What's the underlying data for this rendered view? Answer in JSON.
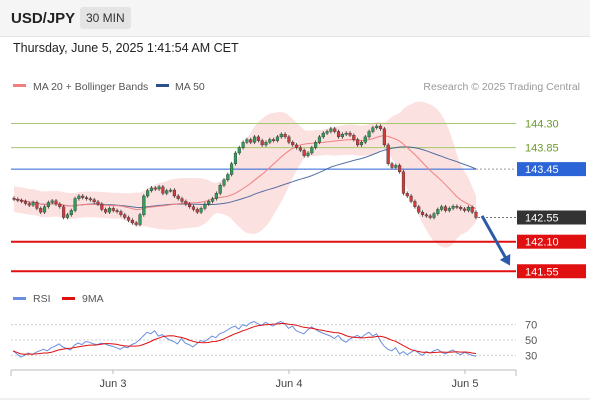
{
  "header": {
    "pair": "USD/JPY",
    "timeframe": "30 MIN"
  },
  "datetime": "Thursday, June 5, 2025 1:41:54 AM CET",
  "colors": {
    "bull": "#2e9e58",
    "bear": "#d33b3b",
    "bands_fill": "#fcdcdc",
    "ma20": "#f08080",
    "ma50": "#2b4f8c",
    "resistance": "#a5c86b",
    "pivot": "#2a64d6",
    "support": "#e01010",
    "last_price_bg": "#333333",
    "arrow": "#2b5ba8",
    "rsi": "#6a8ee0",
    "rsi_ma": "#e01010",
    "grid": "#cfcfcf"
  },
  "chart_data": [
    {
      "type": "candlestick",
      "title": "",
      "legend": [
        "MA 20 + Bollinger Bands",
        "MA 50"
      ],
      "legend_position": "top-left",
      "source": "Research © 2025 Trading Central",
      "x_ticks": [
        "Jun 3",
        "Jun 4",
        "Jun 5"
      ],
      "ylim": [
        141.35,
        144.55
      ],
      "levels": [
        {
          "label": "144.30",
          "value": 144.3,
          "kind": "resistance"
        },
        {
          "label": "143.85",
          "value": 143.85,
          "kind": "resistance"
        },
        {
          "label": "143.45",
          "value": 143.45,
          "kind": "pivot"
        },
        {
          "label": "142.10",
          "value": 142.1,
          "kind": "support"
        },
        {
          "label": "141.55",
          "value": 141.55,
          "kind": "support"
        }
      ],
      "last_price": {
        "label": "142.55",
        "value": 142.55
      },
      "forecast_arrow": {
        "from": 142.58,
        "to": 141.72
      },
      "close": [
        142.89,
        142.87,
        142.85,
        142.81,
        142.78,
        142.83,
        142.72,
        142.65,
        142.75,
        142.83,
        142.86,
        142.8,
        142.75,
        142.55,
        142.6,
        142.68,
        142.9,
        142.95,
        142.92,
        142.9,
        142.88,
        142.84,
        142.8,
        142.7,
        142.65,
        142.72,
        142.68,
        142.66,
        142.6,
        142.55,
        142.5,
        142.45,
        142.42,
        142.6,
        142.95,
        143.05,
        143.1,
        143.08,
        143.12,
        143.0,
        143.05,
        143.06,
        142.95,
        142.9,
        142.85,
        142.8,
        142.75,
        142.7,
        142.65,
        142.72,
        142.8,
        142.85,
        142.9,
        143.0,
        143.15,
        143.25,
        143.35,
        143.55,
        143.75,
        143.85,
        143.95,
        144.0,
        143.95,
        144.05,
        143.98,
        143.9,
        143.95,
        144.0,
        143.98,
        144.05,
        144.1,
        144.05,
        143.95,
        143.9,
        143.85,
        143.8,
        143.7,
        143.75,
        143.85,
        143.95,
        144.05,
        144.12,
        144.15,
        144.2,
        144.15,
        144.05,
        144.1,
        144.12,
        144.08,
        144.0,
        143.9,
        143.95,
        144.05,
        144.15,
        144.22,
        144.25,
        144.2,
        143.9,
        143.55,
        143.48,
        143.52,
        143.4,
        143.0,
        142.95,
        142.85,
        142.75,
        142.65,
        142.6,
        142.58,
        142.55,
        142.62,
        142.7,
        142.75,
        142.68,
        142.72,
        142.76,
        142.74,
        142.71,
        142.68,
        142.74,
        142.65,
        142.55
      ]
    },
    {
      "type": "line",
      "title": "",
      "legend": [
        "RSI",
        "9MA"
      ],
      "legend_position": "top-left",
      "ylim": [
        15,
        85
      ],
      "y_ticks": [
        70,
        50,
        30
      ],
      "rsi": [
        36,
        32,
        28,
        30,
        33,
        31,
        34,
        36,
        38,
        36,
        40,
        42,
        45,
        41,
        39,
        37,
        43,
        46,
        44,
        48,
        47,
        45,
        44,
        46,
        45,
        43,
        42,
        40,
        38,
        41,
        40,
        44,
        46,
        50,
        55,
        60,
        58,
        62,
        55,
        57,
        53,
        50,
        48,
        45,
        52,
        46,
        44,
        41,
        45,
        49,
        48,
        51,
        55,
        53,
        58,
        60,
        63,
        66,
        68,
        64,
        70,
        68,
        72,
        74,
        71,
        69,
        73,
        70,
        68,
        72,
        74,
        71,
        65,
        68,
        62,
        60,
        58,
        63,
        67,
        64,
        61,
        59,
        57,
        55,
        52,
        56,
        50,
        47,
        51,
        54,
        56,
        53,
        57,
        60,
        55,
        58,
        49,
        42,
        38,
        36,
        40,
        32,
        35,
        31,
        34,
        37,
        33,
        30,
        35,
        33,
        36,
        38,
        34,
        32,
        35,
        37,
        33,
        31,
        34,
        32,
        30,
        29
      ]
    }
  ]
}
